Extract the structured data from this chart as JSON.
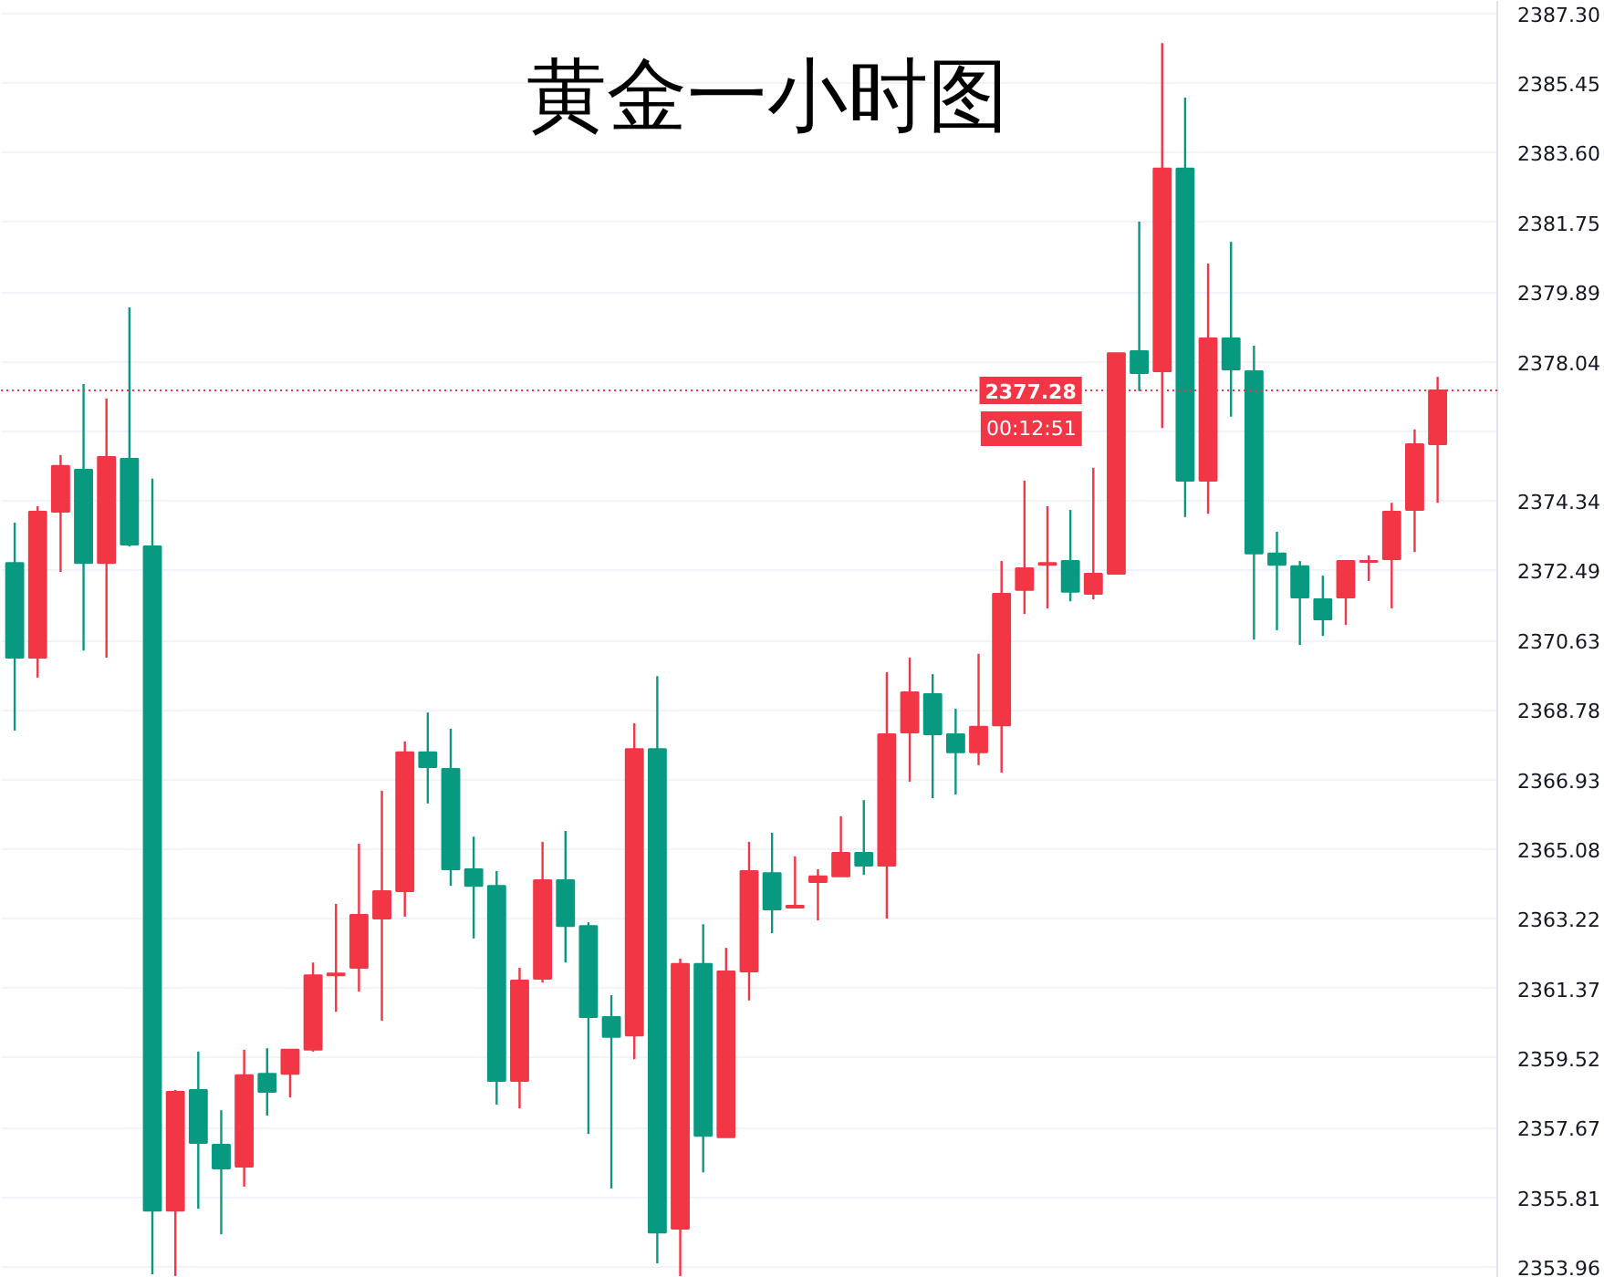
{
  "chart_data": {
    "type": "candlestick",
    "title": "黄金一小时图",
    "categories": [
      null,
      null,
      null,
      null,
      null,
      null,
      null,
      null,
      null,
      null,
      null,
      null,
      null,
      null,
      null,
      null,
      null,
      null,
      null,
      null,
      null,
      null,
      null,
      null,
      null,
      null,
      null,
      null,
      null,
      null,
      null,
      null,
      null,
      null,
      null,
      null,
      null,
      null,
      null,
      null,
      null,
      null,
      null,
      null,
      null,
      null,
      null,
      null,
      null,
      null,
      null,
      null,
      null,
      null,
      null,
      null,
      null,
      null,
      null,
      null,
      null,
      null,
      null
    ],
    "ohlc": [
      [
        2372.69,
        2373.76,
        2368.23,
        2370.17
      ],
      [
        2370.17,
        2374.2,
        2369.64,
        2374.05
      ],
      [
        2374.05,
        2375.56,
        2372.45,
        2375.27
      ],
      [
        2375.17,
        2377.45,
        2370.36,
        2372.69
      ],
      [
        2372.69,
        2377.06,
        2370.17,
        2375.51
      ],
      [
        2375.46,
        2379.49,
        2373.13,
        2373.18
      ],
      [
        2373.13,
        2374.93,
        2353.77,
        2355.46
      ],
      [
        2355.46,
        2358.67,
        2353.72,
        2358.62
      ],
      [
        2358.67,
        2359.69,
        2355.51,
        2357.26
      ],
      [
        2357.21,
        2358.13,
        2354.83,
        2356.58
      ],
      [
        2356.63,
        2359.74,
        2356.1,
        2359.06
      ],
      [
        2359.1,
        2359.78,
        2357.99,
        2358.62
      ],
      [
        2359.1,
        2359.74,
        2358.47,
        2359.74
      ],
      [
        2359.74,
        2362.06,
        2359.69,
        2361.72
      ],
      [
        2361.72,
        2363.62,
        2360.75,
        2361.77
      ],
      [
        2361.92,
        2365.22,
        2361.29,
        2363.33
      ],
      [
        2363.23,
        2366.63,
        2360.51,
        2363.96
      ],
      [
        2363.96,
        2367.94,
        2363.28,
        2367.65
      ],
      [
        2367.65,
        2368.71,
        2366.29,
        2367.26
      ],
      [
        2367.21,
        2368.28,
        2364.1,
        2364.54
      ],
      [
        2364.54,
        2365.41,
        2362.7,
        2364.1
      ],
      [
        2364.1,
        2364.49,
        2358.28,
        2358.91
      ],
      [
        2358.91,
        2361.92,
        2358.18,
        2361.58
      ],
      [
        2361.63,
        2365.27,
        2361.53,
        2364.25
      ],
      [
        2364.25,
        2365.56,
        2362.06,
        2363.03
      ],
      [
        2363.03,
        2363.13,
        2357.5,
        2360.61
      ],
      [
        2360.61,
        2361.19,
        2356.05,
        2360.08
      ],
      [
        2360.12,
        2368.42,
        2359.49,
        2367.74
      ],
      [
        2367.74,
        2369.68,
        2354.06,
        2354.88
      ],
      [
        2354.98,
        2362.16,
        2353.72,
        2362.02
      ],
      [
        2362.02,
        2363.08,
        2356.48,
        2357.45
      ],
      [
        2357.41,
        2362.45,
        2357.41,
        2361.82
      ],
      [
        2361.82,
        2365.27,
        2361.05,
        2364.49
      ],
      [
        2364.44,
        2365.51,
        2362.84,
        2363.47
      ],
      [
        2363.52,
        2364.88,
        2363.52,
        2363.57
      ],
      [
        2364.2,
        2364.54,
        2363.18,
        2364.35
      ],
      [
        2364.35,
        2365.95,
        2364.35,
        2364.98
      ],
      [
        2364.98,
        2366.38,
        2364.39,
        2364.64
      ],
      [
        2364.64,
        2369.78,
        2363.23,
        2368.13
      ],
      [
        2368.18,
        2370.17,
        2366.87,
        2369.25
      ],
      [
        2369.2,
        2369.73,
        2366.43,
        2368.13
      ],
      [
        2368.13,
        2368.81,
        2366.53,
        2367.65
      ],
      [
        2367.65,
        2370.27,
        2367.31,
        2368.33
      ],
      [
        2368.37,
        2372.74,
        2367.11,
        2371.87
      ],
      [
        2371.97,
        2374.88,
        2371.33,
        2372.55
      ],
      [
        2372.64,
        2374.2,
        2371.48,
        2372.69
      ],
      [
        2372.74,
        2374.1,
        2371.67,
        2371.92
      ],
      [
        2371.87,
        2375.22,
        2371.72,
        2372.4
      ],
      [
        2372.4,
        2378.27,
        2372.4,
        2378.27
      ],
      [
        2378.32,
        2381.77,
        2377.26,
        2377.74
      ],
      [
        2377.79,
        2386.52,
        2376.28,
        2383.18
      ],
      [
        2383.18,
        2385.07,
        2373.91,
        2374.88
      ],
      [
        2374.88,
        2380.65,
        2374.0,
        2378.66
      ],
      [
        2378.66,
        2381.23,
        2376.58,
        2377.84
      ],
      [
        2377.79,
        2378.47,
        2370.65,
        2372.94
      ],
      [
        2372.94,
        2373.52,
        2370.9,
        2372.64
      ],
      [
        2372.6,
        2372.74,
        2370.51,
        2371.77
      ],
      [
        2371.72,
        2372.35,
        2370.75,
        2371.19
      ],
      [
        2371.77,
        2372.74,
        2371.04,
        2372.74
      ],
      [
        2372.72,
        2372.89,
        2372.21,
        2372.74
      ],
      [
        2372.79,
        2374.29,
        2371.48,
        2374.05
      ],
      [
        2374.1,
        2376.24,
        2372.98,
        2375.85
      ],
      [
        2375.85,
        2377.64,
        2374.29,
        2377.28
      ]
    ],
    "colors": [
      "#089981",
      "#f23645",
      "#f23645",
      "#089981",
      "#f23645",
      "#089981",
      "#089981",
      "#f23645",
      "#089981",
      "#089981",
      "#f23645",
      "#089981",
      "#f23645",
      "#f23645",
      "#f23645",
      "#f23645",
      "#f23645",
      "#f23645",
      "#089981",
      "#089981",
      "#089981",
      "#089981",
      "#f23645",
      "#f23645",
      "#089981",
      "#089981",
      "#089981",
      "#f23645",
      "#089981",
      "#f23645",
      "#089981",
      "#f23645",
      "#f23645",
      "#089981",
      "#f23645",
      "#f23645",
      "#f23645",
      "#089981",
      "#f23645",
      "#f23645",
      "#089981",
      "#089981",
      "#f23645",
      "#f23645",
      "#f23645",
      "#f23645",
      "#089981",
      "#f23645",
      "#f23645",
      "#089981",
      "#f23645",
      "#089981",
      "#f23645",
      "#089981",
      "#089981",
      "#089981",
      "#089981",
      "#089981",
      "#f23645",
      "#f23645",
      "#f23645",
      "#f23645",
      "#f23645"
    ],
    "ylim": [
      2353.67,
      2387.64
    ],
    "yticks": [
      2353.96,
      2355.81,
      2357.67,
      2359.52,
      2361.37,
      2363.22,
      2365.08,
      2366.93,
      2368.78,
      2370.63,
      2372.49,
      2374.34,
      {
        "value": 2376.19,
        "label": null
      },
      2378.04,
      2379.89,
      2381.75,
      {
        "value": 2383.6,
        "label": "2383.60"
      },
      2385.45,
      {
        "value": 2387.3,
        "label": "2387.30"
      }
    ],
    "tick_labels": "y",
    "grid": "y",
    "ref_lines": [
      {
        "axis": "y",
        "value": 2377.28,
        "label": "2377.28",
        "color": "#f23645",
        "line_style": "dotted"
      }
    ],
    "annotations": [
      "00:12:51"
    ]
  }
}
